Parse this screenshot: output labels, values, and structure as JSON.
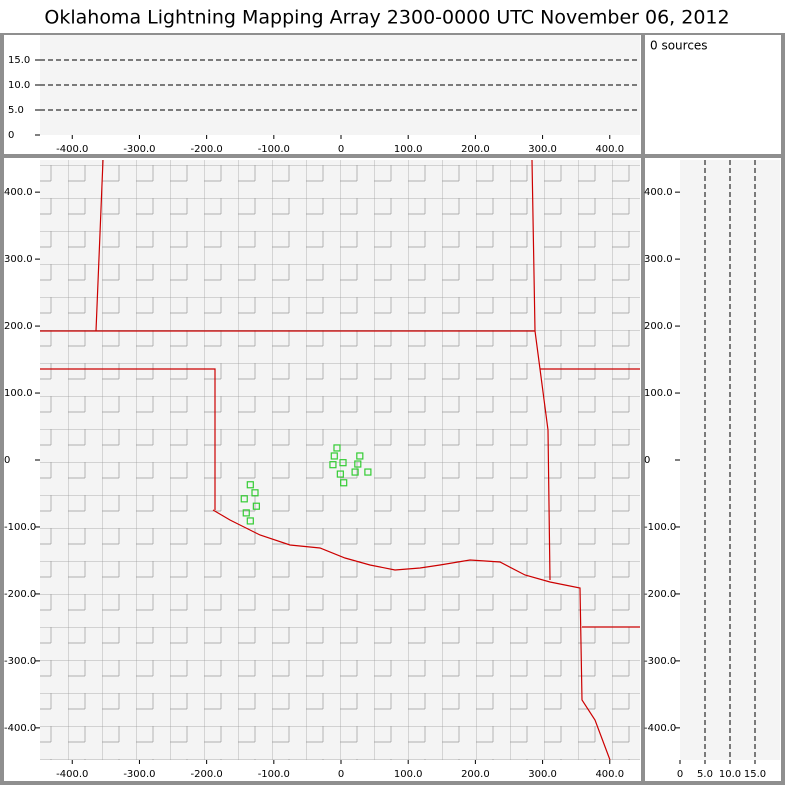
{
  "title": "Oklahoma Lightning Mapping Array   2300-0000 UTC  November 06, 2012",
  "source_count": "0 sources",
  "chart_data": [
    {
      "type": "scatter",
      "xlim": [
        -448,
        445
      ],
      "ylim": [
        0,
        20
      ],
      "xticks": [
        {
          "value": -400,
          "label": "-400.0"
        },
        {
          "value": -300,
          "label": "-300.0"
        },
        {
          "value": -200,
          "label": "-200.0"
        },
        {
          "value": -100,
          "label": "-100.0"
        },
        0,
        {
          "value": 100,
          "label": "100.0"
        },
        {
          "value": 200,
          "label": "200.0"
        },
        {
          "value": 300,
          "label": "300.0"
        },
        {
          "value": 400,
          "label": "400.0"
        }
      ],
      "yticks": [
        0,
        {
          "value": 5,
          "label": "5.0"
        },
        {
          "value": 10,
          "label": "10.0"
        },
        {
          "value": 15,
          "label": "15.0"
        }
      ],
      "ygrid": true
    },
    {
      "type": "scatter",
      "xlim": [
        -448,
        445
      ],
      "ylim": [
        -448,
        448
      ],
      "xticks": [
        {
          "value": -400,
          "label": "-400.0"
        },
        {
          "value": -300,
          "label": "-300.0"
        },
        {
          "value": -200,
          "label": "-200.0"
        },
        {
          "value": -100,
          "label": "-100.0"
        },
        0,
        {
          "value": 100,
          "label": "100.0"
        },
        {
          "value": 200,
          "label": "200.0"
        },
        {
          "value": 300,
          "label": "300.0"
        },
        {
          "value": 400,
          "label": "400.0"
        }
      ],
      "yticks": [
        {
          "value": 400,
          "label": "400.0"
        },
        {
          "value": 300,
          "label": "300.0"
        },
        {
          "value": 200,
          "label": "200.0"
        },
        {
          "value": 100,
          "label": "100.0"
        },
        0,
        {
          "value": -100,
          "label": "-100.0"
        },
        {
          "value": -200,
          "label": "-200.0"
        },
        {
          "value": -300,
          "label": "-300.0"
        },
        {
          "value": -400,
          "label": "-400.0"
        }
      ],
      "color": "#33cc33",
      "x": [
        -6,
        -10,
        28,
        3,
        -12,
        25,
        21,
        -1,
        40,
        4,
        -135,
        -128,
        -144,
        -126,
        -141,
        -135
      ],
      "y": [
        18,
        6,
        6,
        -4,
        -7,
        -6,
        -18,
        -21,
        -18,
        -34,
        -37,
        -49,
        -58,
        -69,
        -79,
        -91
      ]
    },
    {
      "type": "scatter",
      "xlim": [
        0,
        20
      ],
      "ylim": [
        -448,
        448
      ],
      "xticks": [
        0,
        {
          "value": 5,
          "label": "5.0"
        },
        {
          "value": 10,
          "label": "10.0"
        },
        {
          "value": 15,
          "label": "15.0"
        }
      ],
      "yticks": [
        {
          "value": 400,
          "label": "400.0"
        },
        {
          "value": 300,
          "label": "300.0"
        },
        {
          "value": 200,
          "label": "200.0"
        },
        {
          "value": 100,
          "label": "100.0"
        },
        0,
        {
          "value": -100,
          "label": "-100.0"
        },
        {
          "value": -200,
          "label": "-200.0"
        },
        {
          "value": -300,
          "label": "-300.0"
        },
        {
          "value": -400,
          "label": "-400.0"
        }
      ],
      "xgrid": true
    }
  ]
}
